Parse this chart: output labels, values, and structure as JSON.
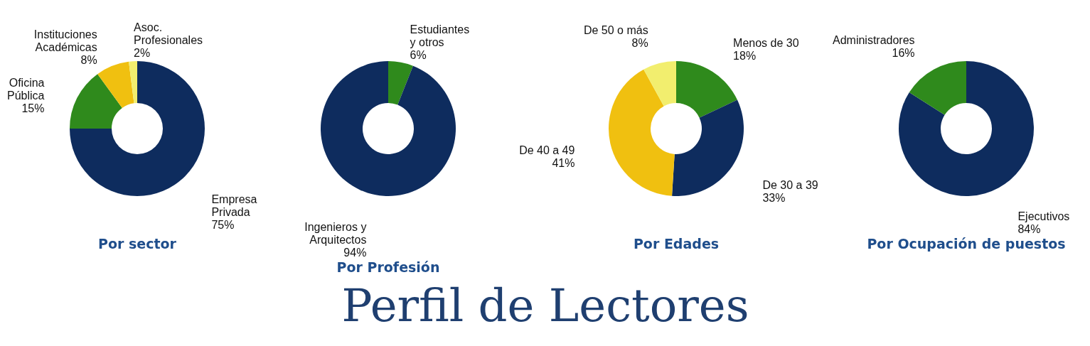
{
  "chart_data": [
    {
      "type": "donut",
      "title": "Por sector",
      "categories": [
        "Empresa Privada",
        "Oficina Pública",
        "Instituciones Académicas",
        "Asoc. Profesionales"
      ],
      "values": [
        75,
        15,
        8,
        2
      ],
      "colors": [
        "#0e2c5e",
        "#2f8a1c",
        "#f0c010",
        "#f2ee6e"
      ],
      "value_labels": [
        "75%",
        "15%",
        "8%",
        "2%"
      ]
    },
    {
      "type": "donut",
      "title": "Por Profesión",
      "categories": [
        "Estudiantes y otros",
        "Ingenieros y Arquitectos"
      ],
      "values": [
        6,
        94
      ],
      "colors": [
        "#2f8a1c",
        "#0e2c5e"
      ],
      "value_labels": [
        "6%",
        "94%"
      ]
    },
    {
      "type": "donut",
      "title": "Por Edades",
      "categories": [
        "Menos de 30",
        "De 30 a 39",
        "De 40 a 49",
        "De 50 o más"
      ],
      "values": [
        18,
        33,
        41,
        8
      ],
      "colors": [
        "#2f8a1c",
        "#0e2c5e",
        "#f0c010",
        "#f2ee6e"
      ],
      "value_labels": [
        "18%",
        "33%",
        "41%",
        "8%"
      ]
    },
    {
      "type": "donut",
      "title": "Por Ocupación de puestos",
      "categories": [
        "Ejecutivos",
        "Administradores"
      ],
      "values": [
        84,
        16
      ],
      "colors": [
        "#0e2c5e",
        "#2f8a1c"
      ],
      "value_labels": [
        "84%",
        "16%"
      ]
    },
    {
      "type": "other",
      "title": "Perfil de Lectores"
    }
  ]
}
